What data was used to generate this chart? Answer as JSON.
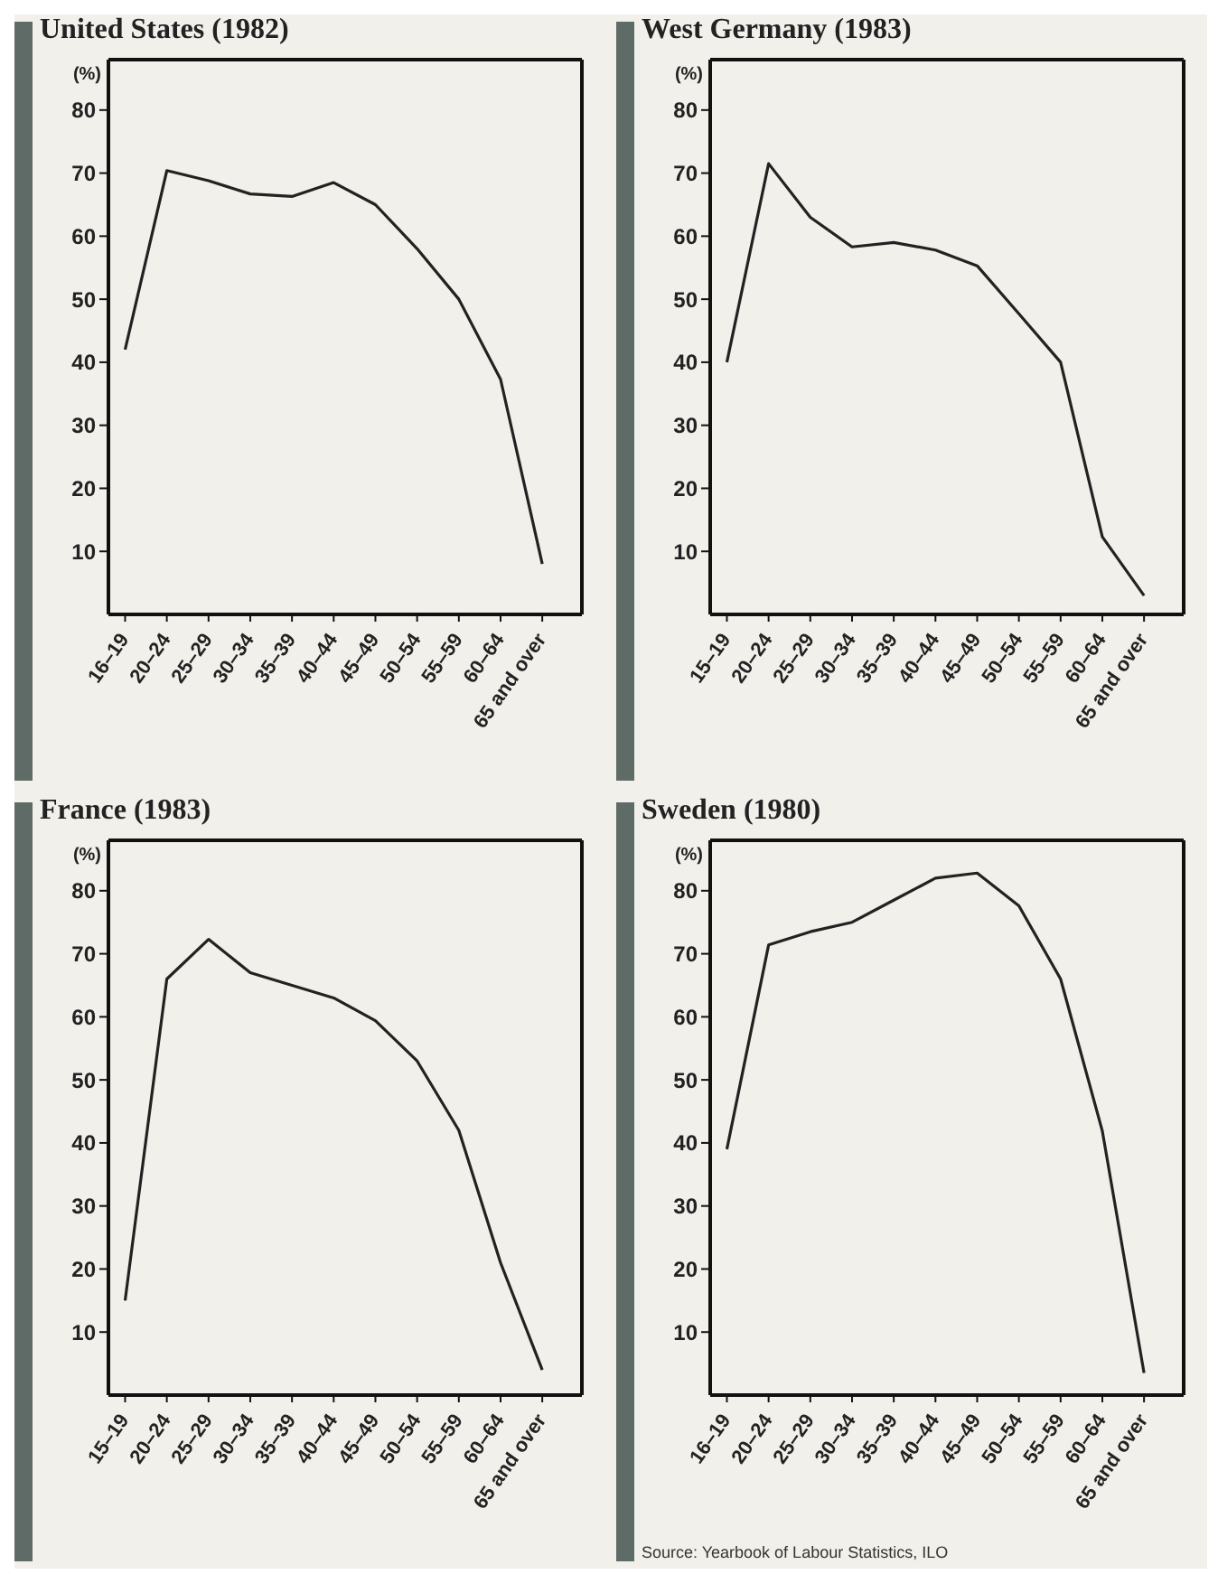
{
  "chart_data": [
    {
      "type": "line",
      "title": "United States (1982)",
      "ylabel": "(%)",
      "categories": [
        "16–19",
        "20–24",
        "25–29",
        "30–34",
        "35–39",
        "40–44",
        "45–49",
        "50–54",
        "55–59",
        "60–64",
        "65 and over"
      ],
      "series": [
        {
          "color": "#222222",
          "values": [
            42,
            70.4,
            68.8,
            66.7,
            66.3,
            68.5,
            65,
            58,
            50,
            37.3,
            8
          ]
        }
      ],
      "ylim": [
        0,
        88
      ],
      "yticks": [
        10,
        20,
        30,
        40,
        50,
        60,
        70,
        80
      ],
      "marker": "none",
      "line_style": "solid"
    },
    {
      "type": "line",
      "title": "West Germany (1983)",
      "ylabel": "(%)",
      "categories": [
        "15–19",
        "20–24",
        "25–29",
        "30–34",
        "35–39",
        "40–44",
        "45–49",
        "50–54",
        "55–59",
        "60–64",
        "65 and over"
      ],
      "series": [
        {
          "color": "#222222",
          "values": [
            40,
            71.5,
            63,
            58.3,
            59,
            57.8,
            55.3,
            47.7,
            40,
            12.3,
            3
          ]
        }
      ],
      "ylim": [
        0,
        88
      ],
      "yticks": [
        10,
        20,
        30,
        40,
        50,
        60,
        70,
        80
      ],
      "marker": "none",
      "line_style": "solid"
    },
    {
      "type": "line",
      "title": "France (1983)",
      "ylabel": "(%)",
      "categories": [
        "15–19",
        "20–24",
        "25–29",
        "30–34",
        "35–39",
        "40–44",
        "45–49",
        "50–54",
        "55–59",
        "60–64",
        "65 and over"
      ],
      "series": [
        {
          "color": "#222222",
          "values": [
            15,
            66,
            72.3,
            67,
            65,
            63,
            59.4,
            53,
            42,
            21,
            4
          ]
        }
      ],
      "ylim": [
        0,
        88
      ],
      "yticks": [
        10,
        20,
        30,
        40,
        50,
        60,
        70,
        80
      ],
      "marker": "none",
      "line_style": "solid"
    },
    {
      "type": "line",
      "title": "Sweden (1980)",
      "ylabel": "(%)",
      "categories": [
        "16–19",
        "20–24",
        "25–29",
        "30–34",
        "35–39",
        "40–44",
        "45–49",
        "50–54",
        "55–59",
        "60–64",
        "65 and over"
      ],
      "series": [
        {
          "color": "#222222",
          "values": [
            39,
            71.4,
            73.5,
            75,
            78.5,
            82,
            82.8,
            77.6,
            66,
            41.9,
            3.5
          ]
        }
      ],
      "ylim": [
        0,
        88
      ],
      "yticks": [
        10,
        20,
        30,
        40,
        50,
        60,
        70,
        80
      ],
      "marker": "none",
      "line_style": "solid",
      "annotations": [
        "Source: Yearbook of Labour Statistics, ILO"
      ]
    }
  ]
}
